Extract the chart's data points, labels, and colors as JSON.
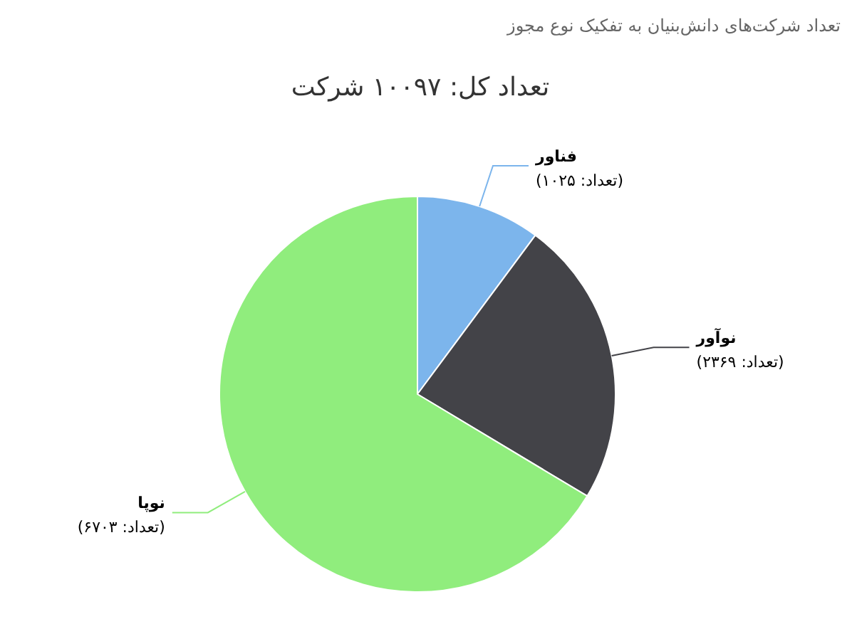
{
  "chart_data": {
    "type": "pie",
    "subtitle": "تعداد شرکت‌های دانش‌بنیان به تفکیک نوع مجوز",
    "title": "تعداد کل: ۱۰۰۹۷ شرکت",
    "categories": [
      "فناور",
      "نوآور",
      "نوپا"
    ],
    "values": [
      1025,
      2369,
      6703
    ],
    "colors": [
      "#7cb5ec",
      "#434348",
      "#90ed7d"
    ],
    "value_labels": [
      "(تعداد: ۱۰۲۵)",
      "(تعداد: ۲۳۶۹)",
      "(تعداد: ۶۷۰۳)"
    ]
  }
}
